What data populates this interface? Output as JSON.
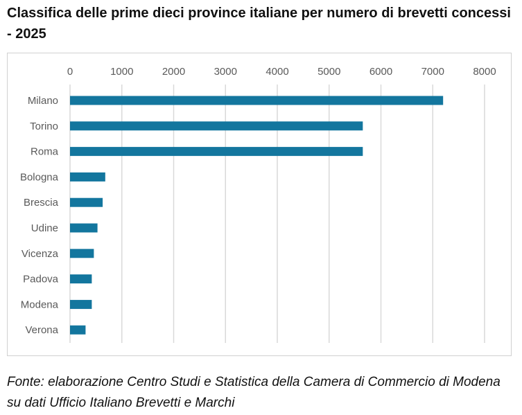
{
  "title": "Classifica delle prime dieci province italiane per numero di brevetti concessi - 2025",
  "source": "Fonte: elaborazione Centro Studi e Statistica della Camera di Commercio di Modena su dati Ufficio Italiano Brevetti e Marchi",
  "colors": {
    "bar": "#13769e",
    "grid": "#d9d9d9",
    "tick_text": "#595959"
  },
  "chart_data": {
    "type": "bar",
    "orientation": "horizontal",
    "categories": [
      "Milano",
      "Torino",
      "Roma",
      "Bologna",
      "Brescia",
      "Udine",
      "Vicenza",
      "Padova",
      "Modena",
      "Verona"
    ],
    "values": [
      7200,
      5650,
      5650,
      680,
      630,
      530,
      460,
      420,
      420,
      300
    ],
    "xlim": [
      0,
      8000
    ],
    "xticks": [
      "0",
      "1000",
      "2000",
      "3000",
      "4000",
      "5000",
      "6000",
      "7000",
      "8000"
    ],
    "x_axis_position": "top",
    "grid": true,
    "legend": "none",
    "xlabel": "",
    "ylabel": ""
  }
}
